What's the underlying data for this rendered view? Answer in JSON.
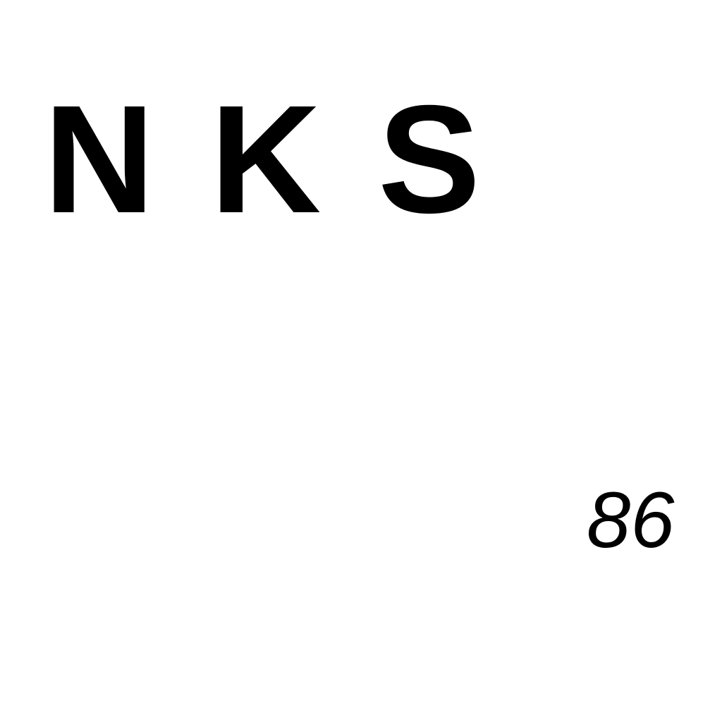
{
  "stimulus": {
    "letters": [
      "N",
      "K",
      "S"
    ]
  },
  "page_number": "86",
  "colors": {
    "background": "#ffffff",
    "text": "#000000"
  }
}
